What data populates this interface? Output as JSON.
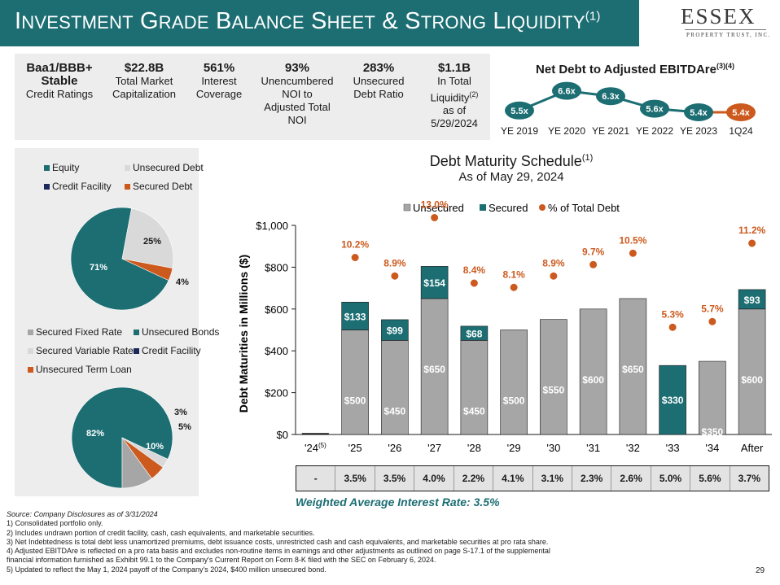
{
  "header": {
    "title": "Investment Grade Balance Sheet & Strong Liquidity",
    "title_sup": "(1)",
    "logo_name": "ESSEX",
    "logo_sub": "PROPERTY TRUST, INC."
  },
  "metrics": [
    {
      "big": "Baa1/BBB+",
      "big2": "Stable",
      "line1": "Credit Ratings"
    },
    {
      "big": "$22.8B",
      "line1": "Total Market",
      "line2": "Capitalization"
    },
    {
      "big": "561%",
      "line1": "Interest",
      "line2": "Coverage"
    },
    {
      "big": "93%",
      "line1": "Unencumbered",
      "line2": "NOI to",
      "line3": "Adjusted Total",
      "line4": "NOI"
    },
    {
      "big": "283%",
      "line1": "Unsecured",
      "line2": "Debt Ratio"
    },
    {
      "big": "$1.1B",
      "line1": "In Total",
      "line2": "Liquidity",
      "line2_sup": "(2)",
      "line3": "as of",
      "line4": "5/29/2024"
    }
  ],
  "colors": {
    "teal": "#1c6e73",
    "gray": "#a6a6a6",
    "lightgray": "#d9d9d9",
    "navy": "#1f2a5c",
    "orange": "#cc5a1e"
  },
  "pie1": {
    "legend": [
      "Equity",
      "Unsecured Debt",
      "Credit Facility",
      "Secured Debt"
    ],
    "slices": [
      {
        "name": "Equity",
        "value": 71,
        "label": "71%",
        "color": "#1c6e73"
      },
      {
        "name": "Unsecured Debt",
        "value": 25,
        "label": "25%",
        "color": "#d9d9d9"
      },
      {
        "name": "Credit Facility",
        "value": 0,
        "label": "",
        "color": "#1f2a5c"
      },
      {
        "name": "Secured Debt",
        "value": 4,
        "label": "4%",
        "color": "#cc5a1e"
      }
    ]
  },
  "pie2": {
    "legend": [
      "Secured Fixed Rate",
      "Unsecured Bonds",
      "Secured Variable Rate",
      "Credit Facility",
      "Unsecured Term Loan"
    ],
    "slices": [
      {
        "name": "Unsecured Bonds",
        "value": 82,
        "label": "82%",
        "color": "#1c6e73"
      },
      {
        "name": "Credit Facility",
        "value": 0,
        "label": "",
        "color": "#1f2a5c"
      },
      {
        "name": "Secured Variable Rate",
        "value": 3,
        "label": "3%",
        "color": "#d9d9d9"
      },
      {
        "name": "Unsecured Term Loan",
        "value": 5,
        "label": "5%",
        "color": "#cc5a1e"
      },
      {
        "name": "Secured Fixed Rate",
        "value": 10,
        "label": "10%",
        "color": "#a6a6a6"
      }
    ]
  },
  "ebitda": {
    "title": "Net Debt to Adjusted EBITDAre",
    "title_sup": "(3)(4)",
    "categories": [
      "YE 2019",
      "YE 2020",
      "YE 2021",
      "YE 2022",
      "YE 2023",
      "1Q24"
    ],
    "values": [
      5.5,
      6.6,
      6.3,
      5.6,
      5.4,
      5.4
    ],
    "labels": [
      "5.5x",
      "6.6x",
      "6.3x",
      "5.6x",
      "5.4x",
      "5.4x"
    ]
  },
  "chart_data": {
    "type": "bar",
    "title": "Debt Maturity Schedule",
    "title_sup": "(1)",
    "subtitle": "As of May 29, 2024",
    "ylabel": "Debt Maturities in Millions ($)",
    "ylim": [
      0,
      1000
    ],
    "yticks": [
      "$0",
      "$200",
      "$400",
      "$600",
      "$800",
      "$1,000"
    ],
    "yticks_values": [
      0,
      200,
      400,
      600,
      800,
      1000
    ],
    "legend": [
      "Unsecured",
      "Secured",
      "% of Total Debt"
    ],
    "categories": [
      "'24",
      "'25",
      "'26",
      "'27",
      "'28",
      "'29",
      "'30",
      "'31",
      "'32",
      "'33",
      "'34",
      "After"
    ],
    "first_category_sup": "(5)",
    "series": [
      {
        "name": "Unsecured",
        "values": [
          0,
          500,
          450,
          650,
          450,
          500,
          550,
          600,
          650,
          0,
          350,
          600
        ],
        "labels": [
          "",
          "$500",
          "$450",
          "$650",
          "$450",
          "$500",
          "$550",
          "$600",
          "$650",
          "",
          "$350",
          "$600"
        ]
      },
      {
        "name": "Secured",
        "values": [
          0,
          133,
          99,
          154,
          68,
          0,
          0,
          0,
          0,
          330,
          0,
          93
        ],
        "labels": [
          "",
          "$133",
          "$99",
          "$154",
          "$68",
          "",
          "",
          "",
          "",
          "$330",
          "",
          "$93"
        ]
      },
      {
        "name": "% of Total Debt",
        "values": [
          null,
          10.2,
          8.9,
          13.0,
          8.4,
          8.1,
          8.9,
          9.7,
          10.5,
          5.3,
          5.7,
          11.2
        ],
        "labels": [
          "",
          "10.2%",
          "8.9%",
          "13.0%",
          "8.4%",
          "8.1%",
          "8.9%",
          "9.7%",
          "10.5%",
          "5.3%",
          "5.7%",
          "11.2%"
        ]
      }
    ]
  },
  "rates": {
    "values": [
      "-",
      "3.5%",
      "3.5%",
      "4.0%",
      "2.2%",
      "4.1%",
      "3.1%",
      "2.3%",
      "2.6%",
      "5.0%",
      "5.6%",
      "3.7%"
    ],
    "weighted_label": "Weighted Average Interest Rate: 3.5%"
  },
  "footnotes": [
    "Source: Company Disclosures as of 3/31/2024",
    "1)    Consolidated portfolio only.",
    "2)    Includes undrawn portion of credit facility, cash, cash equivalents, and marketable securities.",
    "3)    Net Indebtedness is total debt less unamortized premiums, debt issuance costs, unrestricted cash and cash equivalents, and marketable securities at pro rata share.",
    "4)    Adjusted EBITDAre is reflected on a pro rata basis and excludes non-routine items in earnings and other adjustments as outlined on page S-17.1 of the supplemental",
    "        financial information furnished as Exhibit 99.1 to the Company's Current Report on Form 8-K filed with the SEC on February 6, 2024.",
    "5)    Updated to reflect the May 1, 2024 payoff of the Company's 2024, $400 million unsecured bond."
  ],
  "page_number": "29"
}
